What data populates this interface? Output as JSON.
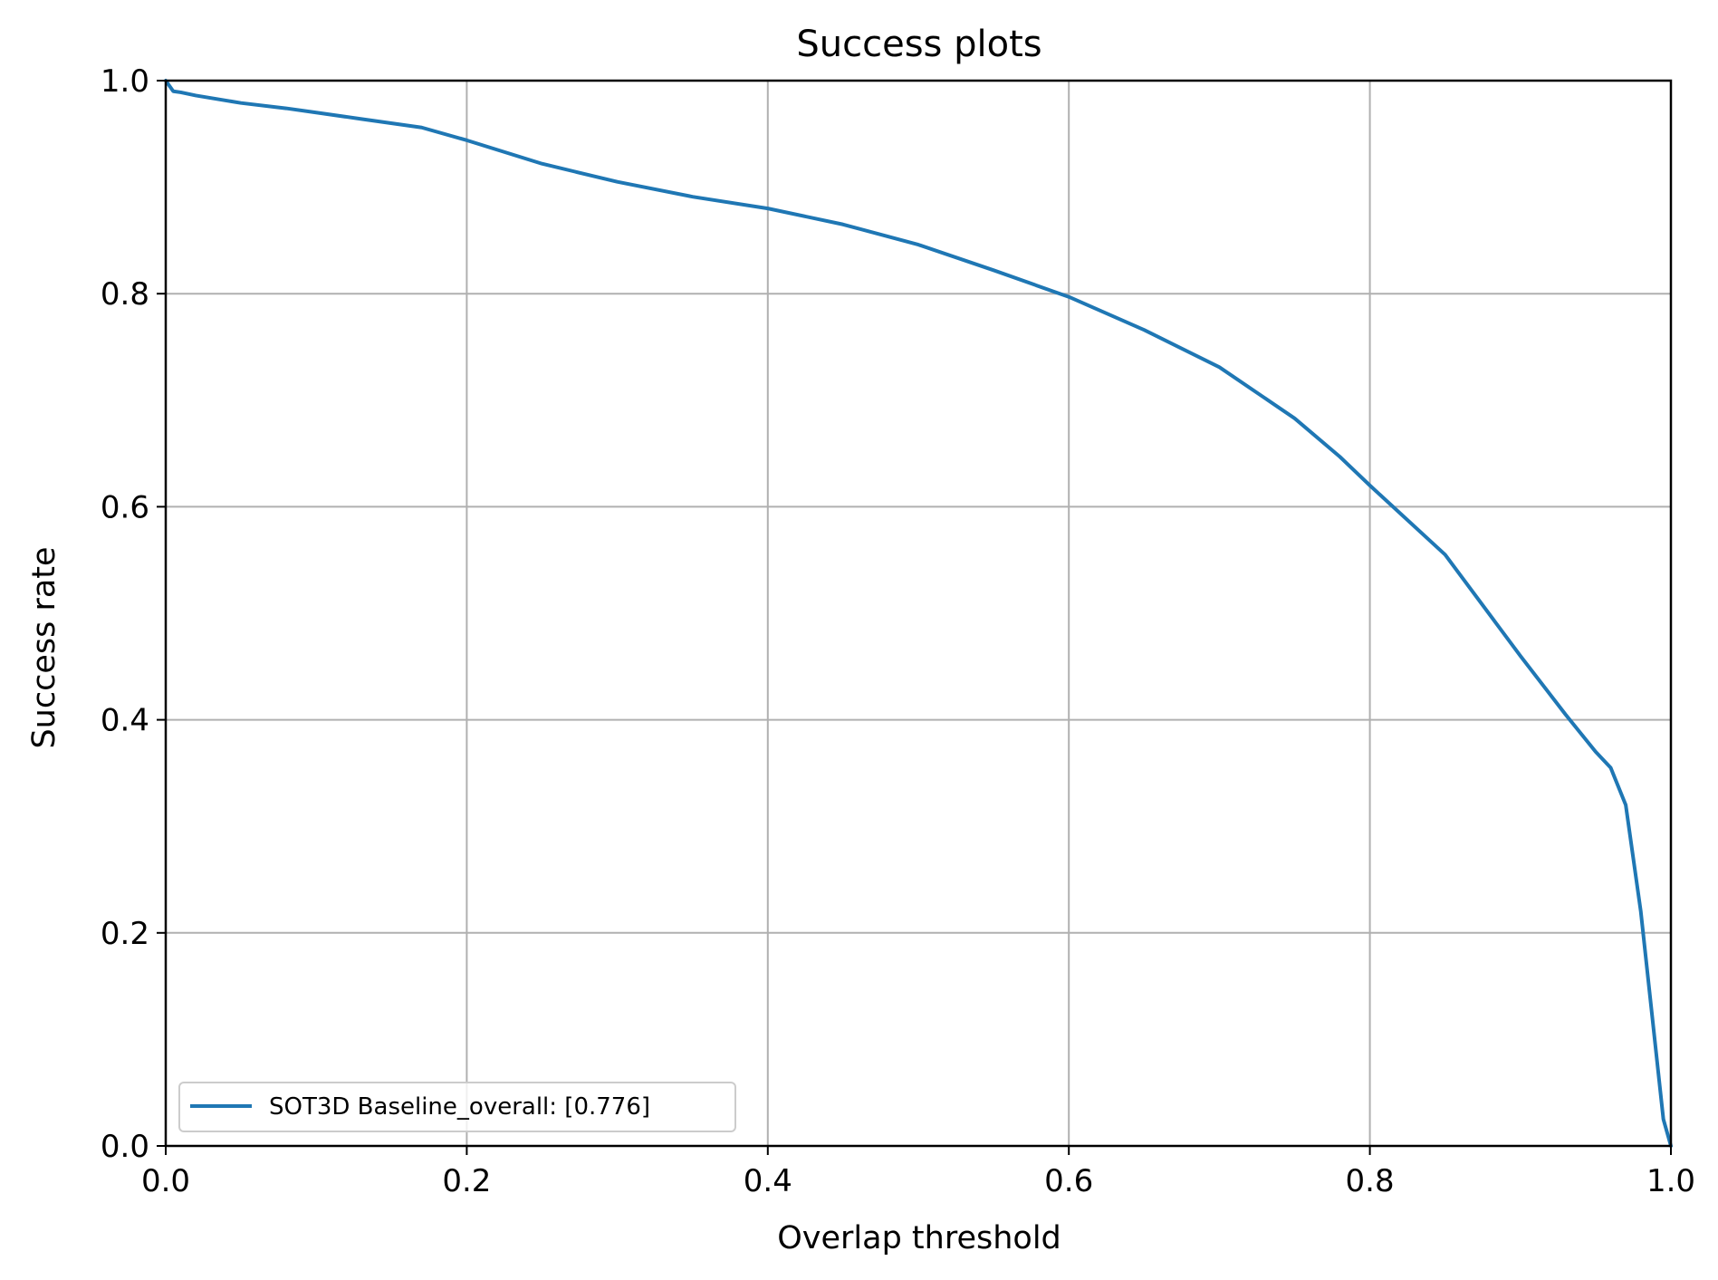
{
  "chart_data": {
    "type": "line",
    "title": "Success plots",
    "xlabel": "Overlap threshold",
    "ylabel": "Success rate",
    "xlim": [
      0.0,
      1.0
    ],
    "ylim": [
      0.0,
      1.0
    ],
    "xticks": [
      "0.0",
      "0.2",
      "0.4",
      "0.6",
      "0.8",
      "1.0"
    ],
    "yticks": [
      "0.0",
      "0.2",
      "0.4",
      "0.6",
      "0.8",
      "1.0"
    ],
    "grid": true,
    "legend_position": "lower-left",
    "series": [
      {
        "name": "SOT3D Baseline_overall: [0.776]",
        "color": "#1f77b4",
        "x": [
          0.0,
          0.005,
          0.01,
          0.02,
          0.05,
          0.08,
          0.1,
          0.13,
          0.17,
          0.2,
          0.25,
          0.3,
          0.35,
          0.4,
          0.45,
          0.5,
          0.55,
          0.6,
          0.65,
          0.7,
          0.75,
          0.78,
          0.8,
          0.85,
          0.9,
          0.93,
          0.95,
          0.96,
          0.97,
          0.98,
          0.99,
          0.995,
          1.0
        ],
        "y": [
          1.0,
          0.99,
          0.989,
          0.986,
          0.979,
          0.974,
          0.97,
          0.964,
          0.956,
          0.944,
          0.922,
          0.905,
          0.891,
          0.88,
          0.865,
          0.846,
          0.822,
          0.797,
          0.766,
          0.731,
          0.683,
          0.647,
          0.62,
          0.555,
          0.46,
          0.405,
          0.37,
          0.355,
          0.32,
          0.22,
          0.09,
          0.025,
          0.0
        ]
      }
    ]
  }
}
